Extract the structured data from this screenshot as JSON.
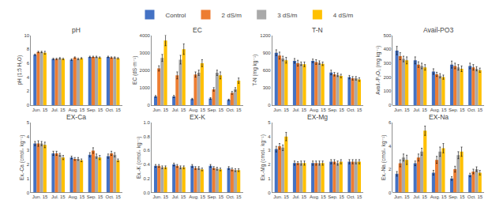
{
  "chart_data": [
    {
      "type": "bar",
      "title": "pH",
      "ylabel": "pH (1:5 H₂O)",
      "categories": [
        "Jun. 15",
        "Jul. 15",
        "Aug. 15",
        "Sep. 15",
        "Oct. 15"
      ],
      "series": [
        {
          "name": "Control",
          "color": "#4472C4",
          "values": [
            7.2,
            6.6,
            6.5,
            6.9,
            6.9
          ],
          "errors": [
            0.1,
            0.1,
            0.1,
            0.1,
            0.1
          ]
        },
        {
          "name": "2 dS/m",
          "color": "#ED7D31",
          "values": [
            7.6,
            6.6,
            6.8,
            6.9,
            6.8
          ],
          "errors": [
            0.1,
            0.1,
            0.1,
            0.1,
            0.1
          ]
        },
        {
          "name": "3 dS/m",
          "color": "#A9A9A9",
          "values": [
            7.6,
            6.7,
            6.6,
            6.9,
            6.8
          ],
          "errors": [
            0.1,
            0.1,
            0.1,
            0.1,
            0.1
          ]
        },
        {
          "name": "4 dS/m",
          "color": "#FFC000",
          "values": [
            7.5,
            6.6,
            6.7,
            6.8,
            6.7
          ],
          "errors": [
            0.2,
            0.1,
            0.1,
            0.1,
            0.1
          ]
        }
      ],
      "ylim": [
        0,
        10
      ],
      "yticks": [
        0,
        2,
        4,
        6,
        8,
        10
      ],
      "grid": false
    },
    {
      "type": "bar",
      "title": "EC",
      "ylabel": "EC (dS·m⁻¹)",
      "categories": [
        "Jun. 15",
        "Jul. 15",
        "Aug. 15",
        "Sep. 15",
        "Oct. 15"
      ],
      "series": [
        {
          "name": "Control",
          "color": "#4472C4",
          "values": [
            500,
            500,
            350,
            380,
            300
          ],
          "errors": [
            50,
            60,
            40,
            50,
            40
          ]
        },
        {
          "name": "2 dS/m",
          "color": "#ED7D31",
          "values": [
            2100,
            1700,
            1750,
            900,
            700
          ],
          "errors": [
            150,
            200,
            150,
            100,
            80
          ]
        },
        {
          "name": "3 dS/m",
          "color": "#A9A9A9",
          "values": [
            2700,
            2600,
            1850,
            1850,
            900
          ],
          "errors": [
            200,
            250,
            150,
            150,
            100
          ]
        },
        {
          "name": "4 dS/m",
          "color": "#FFC000",
          "values": [
            3700,
            3200,
            2400,
            1700,
            1400
          ],
          "errors": [
            300,
            300,
            200,
            200,
            150
          ]
        }
      ],
      "ylim": [
        0,
        4000
      ],
      "yticks": [
        0,
        1000,
        2000,
        3000,
        4000
      ],
      "grid": false
    },
    {
      "type": "bar",
      "title": "T-N",
      "ylabel": "T-N (mg kg⁻¹)",
      "categories": [
        "Jun. 15",
        "Jul. 15",
        "Aug. 15",
        "Sep. 15",
        "Oct. 15"
      ],
      "series": [
        {
          "name": "Control",
          "color": "#4472C4",
          "values": [
            900,
            760,
            760,
            560,
            480
          ],
          "errors": [
            50,
            40,
            30,
            40,
            30
          ]
        },
        {
          "name": "2 dS/m",
          "color": "#ED7D31",
          "values": [
            850,
            720,
            740,
            530,
            460
          ],
          "errors": [
            60,
            50,
            40,
            30,
            30
          ]
        },
        {
          "name": "3 dS/m",
          "color": "#A9A9A9",
          "values": [
            800,
            710,
            730,
            520,
            460
          ],
          "errors": [
            40,
            30,
            30,
            30,
            30
          ]
        },
        {
          "name": "4 dS/m",
          "color": "#FFC000",
          "values": [
            770,
            700,
            710,
            500,
            440
          ],
          "errors": [
            50,
            40,
            30,
            30,
            30
          ]
        }
      ],
      "ylim": [
        0,
        1200
      ],
      "yticks": [
        0,
        300,
        600,
        900,
        1200
      ],
      "grid": false
    },
    {
      "type": "bar",
      "title": "Avail-PO3",
      "ylabel": "Avail.-P₂O₅ (mg kg⁻¹)",
      "categories": [
        "Jun. 15",
        "Jul. 15",
        "Aug. 15",
        "Sep. 15",
        "Oct. 15"
      ],
      "series": [
        {
          "name": "Control",
          "color": "#4472C4",
          "values": [
            390,
            320,
            240,
            290,
            280
          ],
          "errors": [
            30,
            25,
            20,
            25,
            20
          ]
        },
        {
          "name": "2 dS/m",
          "color": "#ED7D31",
          "values": [
            350,
            290,
            220,
            280,
            270
          ],
          "errors": [
            25,
            20,
            15,
            20,
            20
          ]
        },
        {
          "name": "3 dS/m",
          "color": "#A9A9A9",
          "values": [
            330,
            280,
            210,
            270,
            260
          ],
          "errors": [
            20,
            20,
            15,
            20,
            15
          ]
        },
        {
          "name": "4 dS/m",
          "color": "#FFC000",
          "values": [
            320,
            270,
            200,
            260,
            250
          ],
          "errors": [
            25,
            20,
            15,
            20,
            15
          ]
        }
      ],
      "ylim": [
        0,
        500
      ],
      "yticks": [
        0,
        100,
        200,
        300,
        400,
        500
      ],
      "grid": false
    },
    {
      "type": "bar",
      "title": "EX-Ca",
      "ylabel": "Ex.-Ca (cmol₊ kg⁻¹)",
      "categories": [
        "Jun. 15",
        "Jul. 15",
        "Aug. 15",
        "Sep. 15",
        "Oct. 15"
      ],
      "series": [
        {
          "name": "Control",
          "color": "#4472C4",
          "values": [
            3.5,
            2.8,
            2.5,
            2.7,
            2.6
          ],
          "errors": [
            0.15,
            0.15,
            0.1,
            0.15,
            0.15
          ]
        },
        {
          "name": "2 dS/m",
          "color": "#ED7D31",
          "values": [
            3.5,
            2.8,
            2.4,
            3.0,
            2.8
          ],
          "errors": [
            0.2,
            0.15,
            0.1,
            0.2,
            0.15
          ]
        },
        {
          "name": "3 dS/m",
          "color": "#A9A9A9",
          "values": [
            3.5,
            2.7,
            2.4,
            2.6,
            2.7
          ],
          "errors": [
            0.15,
            0.1,
            0.1,
            0.15,
            0.15
          ]
        },
        {
          "name": "4 dS/m",
          "color": "#FFC000",
          "values": [
            3.4,
            2.5,
            2.3,
            2.5,
            2.3
          ],
          "errors": [
            0.2,
            0.15,
            0.1,
            0.15,
            0.1
          ]
        }
      ],
      "ylim": [
        0,
        5
      ],
      "yticks": [
        0,
        1,
        2,
        3,
        4,
        5
      ],
      "grid": false
    },
    {
      "type": "bar",
      "title": "EX-K",
      "ylabel": "Ex.-K (cmol₊ kg⁻¹)",
      "categories": [
        "Jun. 15",
        "Jul. 15",
        "Aug. 15",
        "Sep. 15",
        "Oct. 15"
      ],
      "series": [
        {
          "name": "Control",
          "color": "#4472C4",
          "values": [
            0.38,
            0.4,
            0.38,
            0.38,
            0.35
          ],
          "errors": [
            0.02,
            0.02,
            0.02,
            0.02,
            0.02
          ]
        },
        {
          "name": "2 dS/m",
          "color": "#ED7D31",
          "values": [
            0.38,
            0.38,
            0.35,
            0.35,
            0.33
          ],
          "errors": [
            0.02,
            0.02,
            0.02,
            0.02,
            0.02
          ]
        },
        {
          "name": "3 dS/m",
          "color": "#A9A9A9",
          "values": [
            0.36,
            0.36,
            0.35,
            0.34,
            0.32
          ],
          "errors": [
            0.02,
            0.02,
            0.02,
            0.02,
            0.02
          ]
        },
        {
          "name": "4 dS/m",
          "color": "#FFC000",
          "values": [
            0.36,
            0.36,
            0.33,
            0.33,
            0.32
          ],
          "errors": [
            0.02,
            0.02,
            0.02,
            0.02,
            0.02
          ]
        }
      ],
      "ylim": [
        0,
        1
      ],
      "yticks": [
        {
          "value": 0,
          "label": "0.0"
        },
        0.2,
        0.4,
        0.6,
        0.8,
        {
          "value": 1,
          "label": "1.0"
        }
      ],
      "grid": false
    },
    {
      "type": "bar",
      "title": "EX-Mg",
      "ylabel": "Ex.-Mg (cmol₊ kg⁻¹)",
      "categories": [
        "Jun. 15",
        "Jul. 15",
        "Aug. 15",
        "Sep. 15",
        "Oct. 15"
      ],
      "series": [
        {
          "name": "Control",
          "color": "#4472C4",
          "values": [
            3.1,
            2.1,
            2.1,
            2.2,
            2.2
          ],
          "errors": [
            0.2,
            0.15,
            0.15,
            0.15,
            0.15
          ]
        },
        {
          "name": "2 dS/m",
          "color": "#ED7D31",
          "values": [
            3.3,
            2.1,
            2.1,
            2.2,
            2.2
          ],
          "errors": [
            0.2,
            0.1,
            0.15,
            0.15,
            0.15
          ]
        },
        {
          "name": "3 dS/m",
          "color": "#A9A9A9",
          "values": [
            3.2,
            2.1,
            2.1,
            2.1,
            2.2
          ],
          "errors": [
            0.2,
            0.15,
            0.15,
            0.15,
            0.15
          ]
        },
        {
          "name": "4 dS/m",
          "color": "#FFC000",
          "values": [
            4.0,
            2.1,
            2.1,
            2.2,
            2.2
          ],
          "errors": [
            0.3,
            0.15,
            0.15,
            0.15,
            0.15
          ]
        }
      ],
      "ylim": [
        0,
        5
      ],
      "yticks": [
        0,
        1,
        2,
        3,
        4,
        5
      ],
      "grid": false
    },
    {
      "type": "bar",
      "title": "EX-Na",
      "ylabel": "Ex.-Na (cmol₊ kg⁻¹)",
      "categories": [
        "Jun. 15",
        "Jul. 15",
        "Aug. 15",
        "Sep. 15",
        "Oct. 15"
      ],
      "series": [
        {
          "name": "Control",
          "color": "#4472C4",
          "values": [
            1.6,
            2.5,
            1.7,
            1.2,
            1.5
          ],
          "errors": [
            0.2,
            0.2,
            0.2,
            0.15,
            0.15
          ]
        },
        {
          "name": "2 dS/m",
          "color": "#ED7D31",
          "values": [
            2.5,
            3.0,
            2.8,
            2.0,
            1.8
          ],
          "errors": [
            0.3,
            0.3,
            0.3,
            0.25,
            0.2
          ]
        },
        {
          "name": "3 dS/m",
          "color": "#A9A9A9",
          "values": [
            3.0,
            3.5,
            3.5,
            3.2,
            2.0
          ],
          "errors": [
            0.3,
            0.3,
            0.4,
            0.3,
            0.2
          ]
        },
        {
          "name": "4 dS/m",
          "color": "#FFC000",
          "values": [
            2.8,
            5.3,
            3.8,
            3.5,
            1.7
          ],
          "errors": [
            0.4,
            0.4,
            0.4,
            0.4,
            0.2
          ]
        }
      ],
      "ylim": [
        0,
        6
      ],
      "yticks": [
        0,
        2,
        4,
        6
      ],
      "grid": false
    }
  ]
}
